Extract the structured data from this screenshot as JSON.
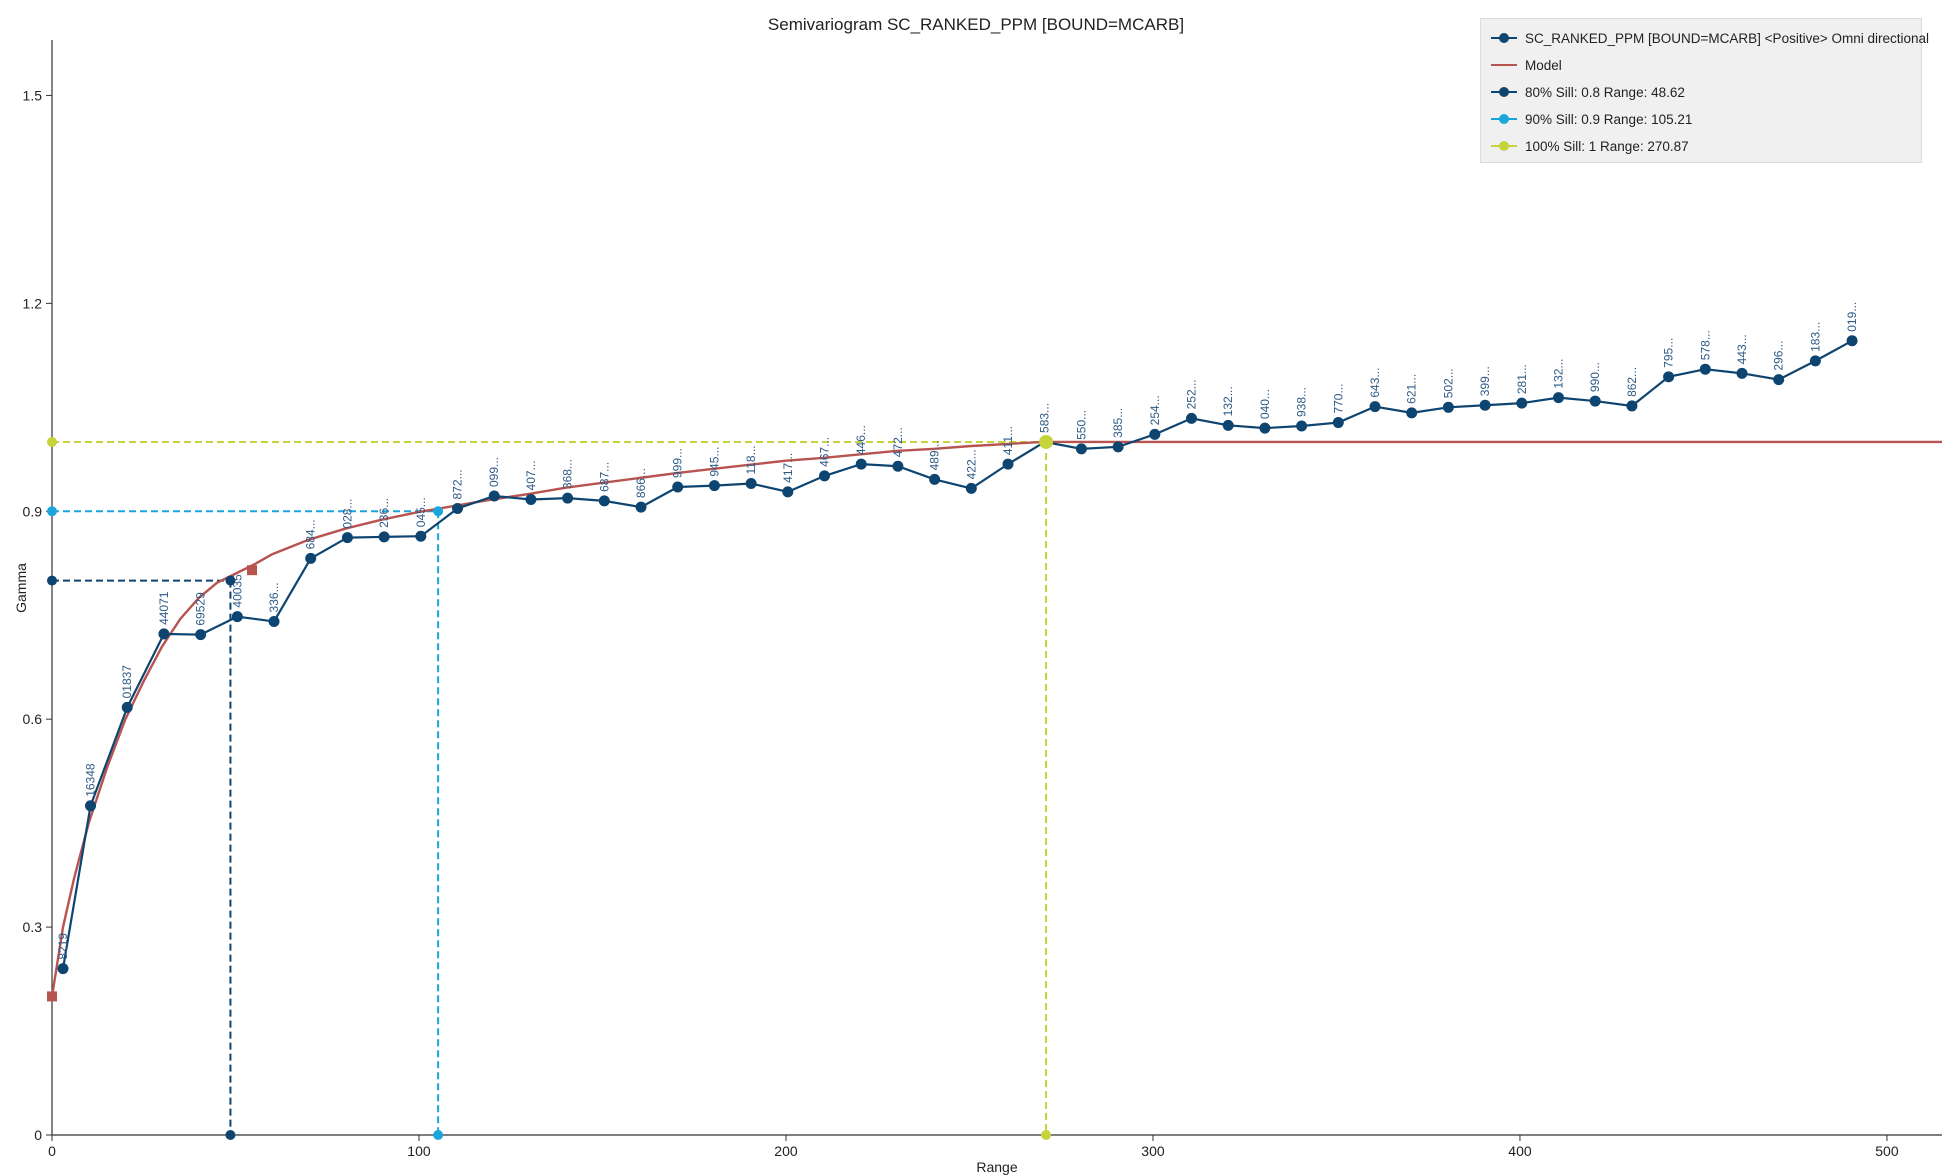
{
  "chart_data": {
    "type": "line",
    "title": "Semivariogram SC_RANKED_PPM [BOUND=MCARB]",
    "xlabel": "Range",
    "ylabel": "Gamma",
    "xlim": [
      0,
      515
    ],
    "ylim": [
      0,
      1.58
    ],
    "x_ticks": [
      0,
      100,
      200,
      300,
      400,
      500
    ],
    "y_ticks": [
      0,
      0.3,
      0.6,
      0.9,
      1.2,
      1.5
    ],
    "x_tick_labels": [
      "0",
      "100",
      "200",
      "300",
      "400",
      "500"
    ],
    "y_tick_labels": [
      "0",
      "0.3",
      "0.6",
      "0.9",
      "1.2",
      "1.5"
    ],
    "legend_position": "top-right",
    "series": [
      {
        "name": "SC_RANKED_PPM [BOUND=MCARB] <Positive> Omni directional",
        "color": "#0e4470",
        "x": [
          3,
          10.5,
          20.5,
          30.5,
          40.5,
          50.5,
          60.5,
          70.5,
          80.5,
          90.5,
          100.5,
          110.5,
          120.5,
          130.5,
          140.5,
          150.5,
          160.5,
          170.5,
          180.5,
          190.5,
          200.5,
          210.5,
          220.5,
          230.5,
          240.5,
          250.5,
          260.5,
          270.5,
          280.5,
          290.5,
          300.5,
          310.5,
          320.5,
          330.5,
          340.5,
          350.5,
          360.5,
          370.5,
          380.5,
          390.5,
          400.5,
          410.5,
          420.5,
          430.5,
          440.5,
          450.5,
          460.5,
          470.5,
          480.5,
          490.5
        ],
        "values": [
          0.24,
          0.475,
          0.617,
          0.723,
          0.722,
          0.748,
          0.741,
          0.832,
          0.862,
          0.863,
          0.864,
          0.904,
          0.922,
          0.917,
          0.919,
          0.915,
          0.906,
          0.935,
          0.937,
          0.94,
          0.928,
          0.951,
          0.968,
          0.965,
          0.946,
          0.933,
          0.968,
          1.0,
          0.99,
          0.993,
          1.011,
          1.034,
          1.024,
          1.02,
          1.023,
          1.028,
          1.051,
          1.042,
          1.05,
          1.053,
          1.056,
          1.064,
          1.059,
          1.052,
          1.094,
          1.105,
          1.099,
          1.09,
          1.117,
          1.146
        ],
        "point_labels": [
          "8219",
          "16348",
          "01837",
          "44071",
          "69529",
          "40035",
          "336...",
          "684...",
          "028...",
          "236...",
          "045...",
          "872...",
          "099...",
          "407...",
          "368...",
          "687...",
          "866...",
          "999...",
          "945...",
          "118...",
          "417...",
          "467...",
          "446...",
          "472...",
          "489...",
          "422...",
          "411...",
          "583...",
          "550...",
          "385...",
          "254...",
          "252...",
          "132...",
          "040...",
          "938...",
          "770...",
          "643...",
          "621...",
          "502...",
          "399...",
          "281...",
          "132...",
          "990...",
          "862...",
          "795...",
          "578...",
          "443...",
          "296...",
          "183...",
          "019..."
        ]
      },
      {
        "name": "Model",
        "color": "#b85450",
        "x": [
          0,
          3,
          6,
          10,
          15,
          20,
          25,
          30,
          35,
          40,
          45,
          50,
          55,
          60,
          70,
          80,
          90,
          100,
          110,
          120,
          130,
          140,
          150,
          160,
          170,
          180,
          190,
          200,
          210,
          220,
          230,
          240,
          250,
          260,
          270,
          280,
          290,
          300,
          515
        ],
        "values": [
          0.2,
          0.3,
          0.37,
          0.45,
          0.53,
          0.6,
          0.655,
          0.705,
          0.745,
          0.775,
          0.797,
          0.81,
          0.823,
          0.838,
          0.859,
          0.875,
          0.888,
          0.899,
          0.908,
          0.917,
          0.925,
          0.934,
          0.941,
          0.948,
          0.955,
          0.961,
          0.967,
          0.973,
          0.977,
          0.982,
          0.987,
          0.99,
          0.994,
          0.997,
          1.0,
          1.0,
          1.0,
          1.0,
          1.0
        ],
        "markers": [
          {
            "x": 0,
            "y": 0.2
          },
          {
            "x": 54.5,
            "y": 0.815
          },
          {
            "x": 270.87,
            "y": 1.0
          }
        ]
      }
    ],
    "sills": [
      {
        "name": "80% Sill: 0.8 Range: 48.62",
        "sill": 0.8,
        "range": 48.62,
        "color": "#0e4470"
      },
      {
        "name": "90% Sill: 0.9 Range: 105.21",
        "sill": 0.9,
        "range": 105.21,
        "color": "#1aa6dc"
      },
      {
        "name": "100% Sill: 1 Range: 270.87",
        "sill": 1.0,
        "range": 270.87,
        "color": "#c6d33a"
      }
    ]
  }
}
